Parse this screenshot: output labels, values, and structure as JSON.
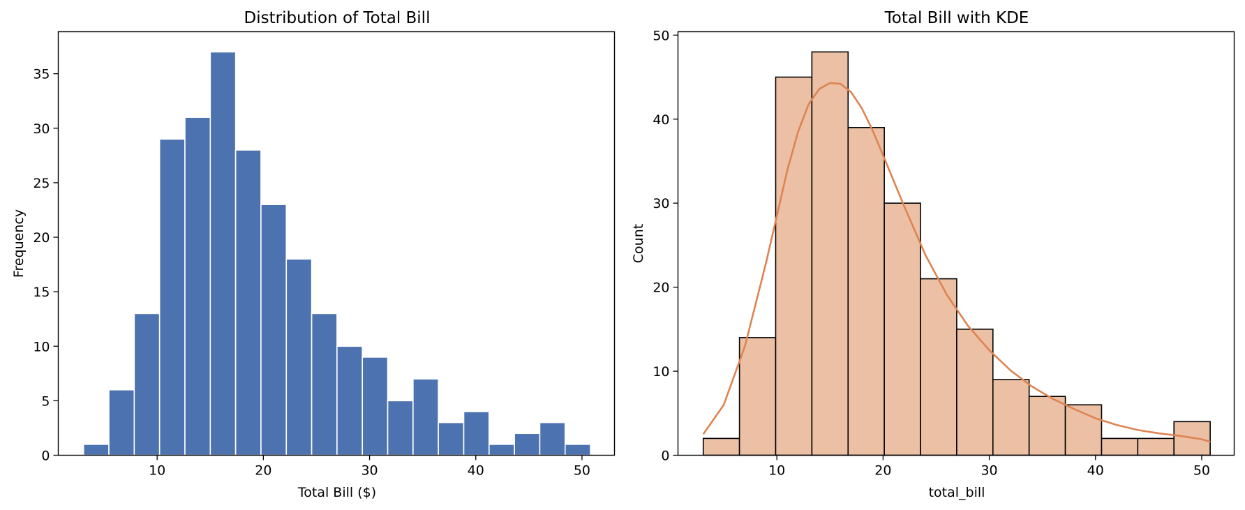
{
  "chart_data": [
    {
      "type": "bar",
      "subtype": "histogram",
      "title": "Distribution of Total Bill",
      "xlabel": "Total Bill ($)",
      "ylabel": "Frequency",
      "xlim": [
        0.69,
        53.06
      ],
      "ylim": [
        0,
        38.85
      ],
      "xticks": [
        10,
        20,
        30,
        40,
        50
      ],
      "yticks": [
        0,
        5,
        10,
        15,
        20,
        25,
        30,
        35
      ],
      "bin_start": 3.07,
      "bin_width": 2.3865,
      "values": [
        1,
        6,
        13,
        29,
        31,
        37,
        28,
        23,
        18,
        13,
        10,
        9,
        5,
        7,
        3,
        4,
        1,
        2,
        3,
        1
      ],
      "bar_color": "#4c72b0",
      "edge_color": "#ffffff"
    },
    {
      "type": "bar",
      "subtype": "histogram_kde",
      "title": "Total Bill with KDE",
      "xlabel": "total_bill",
      "ylabel": "Count",
      "xlim": [
        0.69,
        53.06
      ],
      "ylim": [
        0,
        50.4
      ],
      "xticks": [
        10,
        20,
        30,
        40,
        50
      ],
      "yticks": [
        0,
        10,
        20,
        30,
        40,
        50
      ],
      "bin_start": 3.07,
      "bin_width": 3.4093,
      "values": [
        2,
        14,
        45,
        48,
        39,
        30,
        21,
        15,
        9,
        7,
        6,
        2,
        2,
        4
      ],
      "bar_color": "#ecc0a5",
      "edge_color": "#000000",
      "kde_color": "#dd8452",
      "kde": {
        "x": [
          3.07,
          5,
          7,
          9,
          10,
          11,
          12,
          13,
          14,
          15,
          16,
          17,
          18,
          19,
          20,
          22,
          24,
          26,
          28,
          30,
          32,
          34,
          36,
          38,
          40,
          42,
          44,
          46,
          48,
          50,
          50.81
        ],
        "y": [
          2.5,
          6,
          13,
          23,
          28.5,
          34,
          38.5,
          41.8,
          43.6,
          44.3,
          44.2,
          43.2,
          41.3,
          38.7,
          35.7,
          29.6,
          23.8,
          19.1,
          15.4,
          12.5,
          10.1,
          8.2,
          6.7,
          5.5,
          4.4,
          3.6,
          3.0,
          2.6,
          2.3,
          1.9,
          1.6
        ]
      }
    }
  ]
}
